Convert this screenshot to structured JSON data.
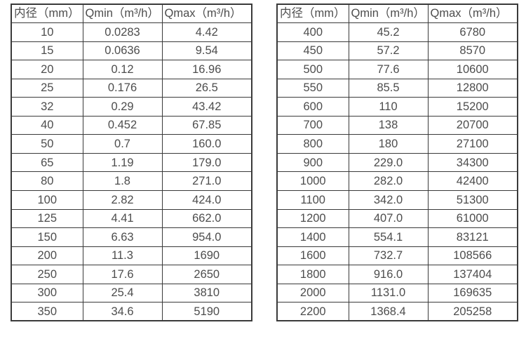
{
  "colors": {
    "background": "#ffffff",
    "border": "#3a3a3a",
    "text": "#4d4d4d"
  },
  "tables": [
    {
      "name": "flow-range-table-small-diameters",
      "headers": [
        "内径（mm）",
        "Qmin（m³/h）",
        "Qmax（m³/h）"
      ],
      "rows": [
        [
          "10",
          "0.0283",
          "4.42"
        ],
        [
          "15",
          "0.0636",
          "9.54"
        ],
        [
          "20",
          "0.12",
          "16.96"
        ],
        [
          "25",
          "0.176",
          "26.5"
        ],
        [
          "32",
          "0.29",
          "43.42"
        ],
        [
          "40",
          "0.452",
          "67.85"
        ],
        [
          "50",
          "0.7",
          "160.0"
        ],
        [
          "65",
          "1.19",
          "179.0"
        ],
        [
          "80",
          "1.8",
          "271.0"
        ],
        [
          "100",
          "2.82",
          "424.0"
        ],
        [
          "125",
          "4.41",
          "662.0"
        ],
        [
          "150",
          "6.63",
          "954.0"
        ],
        [
          "200",
          "11.3",
          "1690"
        ],
        [
          "250",
          "17.6",
          "2650"
        ],
        [
          "300",
          "25.4",
          "3810"
        ],
        [
          "350",
          "34.6",
          "5190"
        ]
      ]
    },
    {
      "name": "flow-range-table-large-diameters",
      "headers": [
        "内径（mm）",
        "Qmin（m³/h）",
        "Qmax（m³/h）"
      ],
      "rows": [
        [
          "400",
          "45.2",
          "6780"
        ],
        [
          "450",
          "57.2",
          "8570"
        ],
        [
          "500",
          "77.6",
          "10600"
        ],
        [
          "550",
          "85.5",
          "12800"
        ],
        [
          "600",
          "110",
          "15200"
        ],
        [
          "700",
          "138",
          "20700"
        ],
        [
          "800",
          "180",
          "27100"
        ],
        [
          "900",
          "229.0",
          "34300"
        ],
        [
          "1000",
          "282.0",
          "42400"
        ],
        [
          "1100",
          "342.0",
          "51300"
        ],
        [
          "1200",
          "407.0",
          "61000"
        ],
        [
          "1400",
          "554.1",
          "83121"
        ],
        [
          "1600",
          "732.7",
          "108566"
        ],
        [
          "1800",
          "916.0",
          "137404"
        ],
        [
          "2000",
          "1131.0",
          "169635"
        ],
        [
          "2200",
          "1368.4",
          "205258"
        ]
      ]
    }
  ]
}
